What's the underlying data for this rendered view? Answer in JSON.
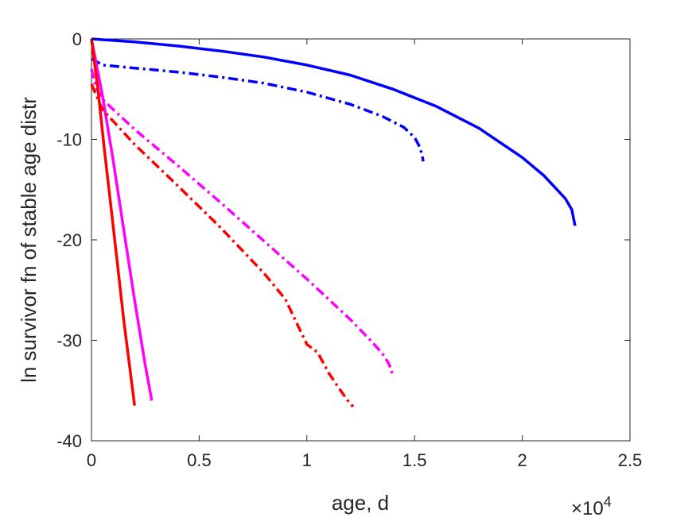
{
  "chart_data": {
    "type": "line",
    "title": "",
    "xlabel": "age, d",
    "ylabel": "ln survivor fn of stable age distr",
    "x_multiplier_label": "×10",
    "x_multiplier_exponent": "4",
    "xlim": [
      0,
      2.5
    ],
    "ylim": [
      -40,
      0
    ],
    "xticks": [
      0,
      0.5,
      1,
      1.5,
      2,
      2.5
    ],
    "xtick_labels": [
      "0",
      "0.5",
      "1",
      "1.5",
      "2",
      "2.5"
    ],
    "yticks": [
      0,
      -10,
      -20,
      -30,
      -40
    ],
    "ytick_labels": [
      "0",
      "-10",
      "-20",
      "-30",
      "-40"
    ],
    "grid": false,
    "legend": "none",
    "series": [
      {
        "color": "#0000ff",
        "style": "solid",
        "x": [
          0,
          0.2,
          0.4,
          0.6,
          0.8,
          1.0,
          1.2,
          1.4,
          1.6,
          1.8,
          2.0,
          2.1,
          2.2,
          2.23,
          2.245
        ],
        "y": [
          0,
          -0.3,
          -0.7,
          -1.2,
          -1.8,
          -2.6,
          -3.6,
          -5.0,
          -6.7,
          -8.9,
          -11.8,
          -13.6,
          -15.9,
          -17.0,
          -18.6
        ]
      },
      {
        "color": "#0000ff",
        "style": "dashdot",
        "x": [
          0,
          0.02,
          0.05,
          0.2,
          0.4,
          0.6,
          0.8,
          1.0,
          1.2,
          1.35,
          1.45,
          1.5,
          1.52,
          1.535,
          1.54
        ],
        "y": [
          -2.0,
          -2.2,
          -2.6,
          -2.9,
          -3.3,
          -3.8,
          -4.4,
          -5.3,
          -6.5,
          -7.7,
          -8.8,
          -9.8,
          -10.6,
          -11.5,
          -12.2
        ]
      },
      {
        "color": "#ff00ff",
        "style": "solid",
        "x": [
          0,
          0.05,
          0.1,
          0.15,
          0.2,
          0.25,
          0.28
        ],
        "y": [
          0,
          -5.5,
          -12,
          -19,
          -26,
          -32.5,
          -36
        ]
      },
      {
        "color": "#ff00ff",
        "style": "dashdot",
        "x": [
          0,
          0.02,
          0.05,
          0.1,
          0.2,
          0.4,
          0.6,
          0.8,
          1.0,
          1.2,
          1.3,
          1.35,
          1.38,
          1.4
        ],
        "y": [
          -3.0,
          -4.8,
          -6.0,
          -7.0,
          -9.0,
          -12.6,
          -16.3,
          -20.1,
          -23.9,
          -27.9,
          -30.1,
          -31.3,
          -32.3,
          -33.5
        ]
      },
      {
        "color": "#ff0000",
        "style": "solid",
        "x": [
          0,
          0.03,
          0.06,
          0.1,
          0.15,
          0.2
        ],
        "y": [
          0,
          -5,
          -11,
          -18.5,
          -28,
          -36.5
        ]
      },
      {
        "color": "#ff0000",
        "style": "dashdot",
        "x": [
          0,
          0.05,
          0.2,
          0.4,
          0.6,
          0.8,
          0.9,
          1.0,
          1.05,
          1.1,
          1.15,
          1.2,
          1.215
        ],
        "y": [
          -4.5,
          -7.0,
          -10.5,
          -14.6,
          -18.8,
          -23.3,
          -25.9,
          -30.4,
          -31.2,
          -33.2,
          -34.8,
          -36.3,
          -36.6
        ]
      }
    ]
  }
}
